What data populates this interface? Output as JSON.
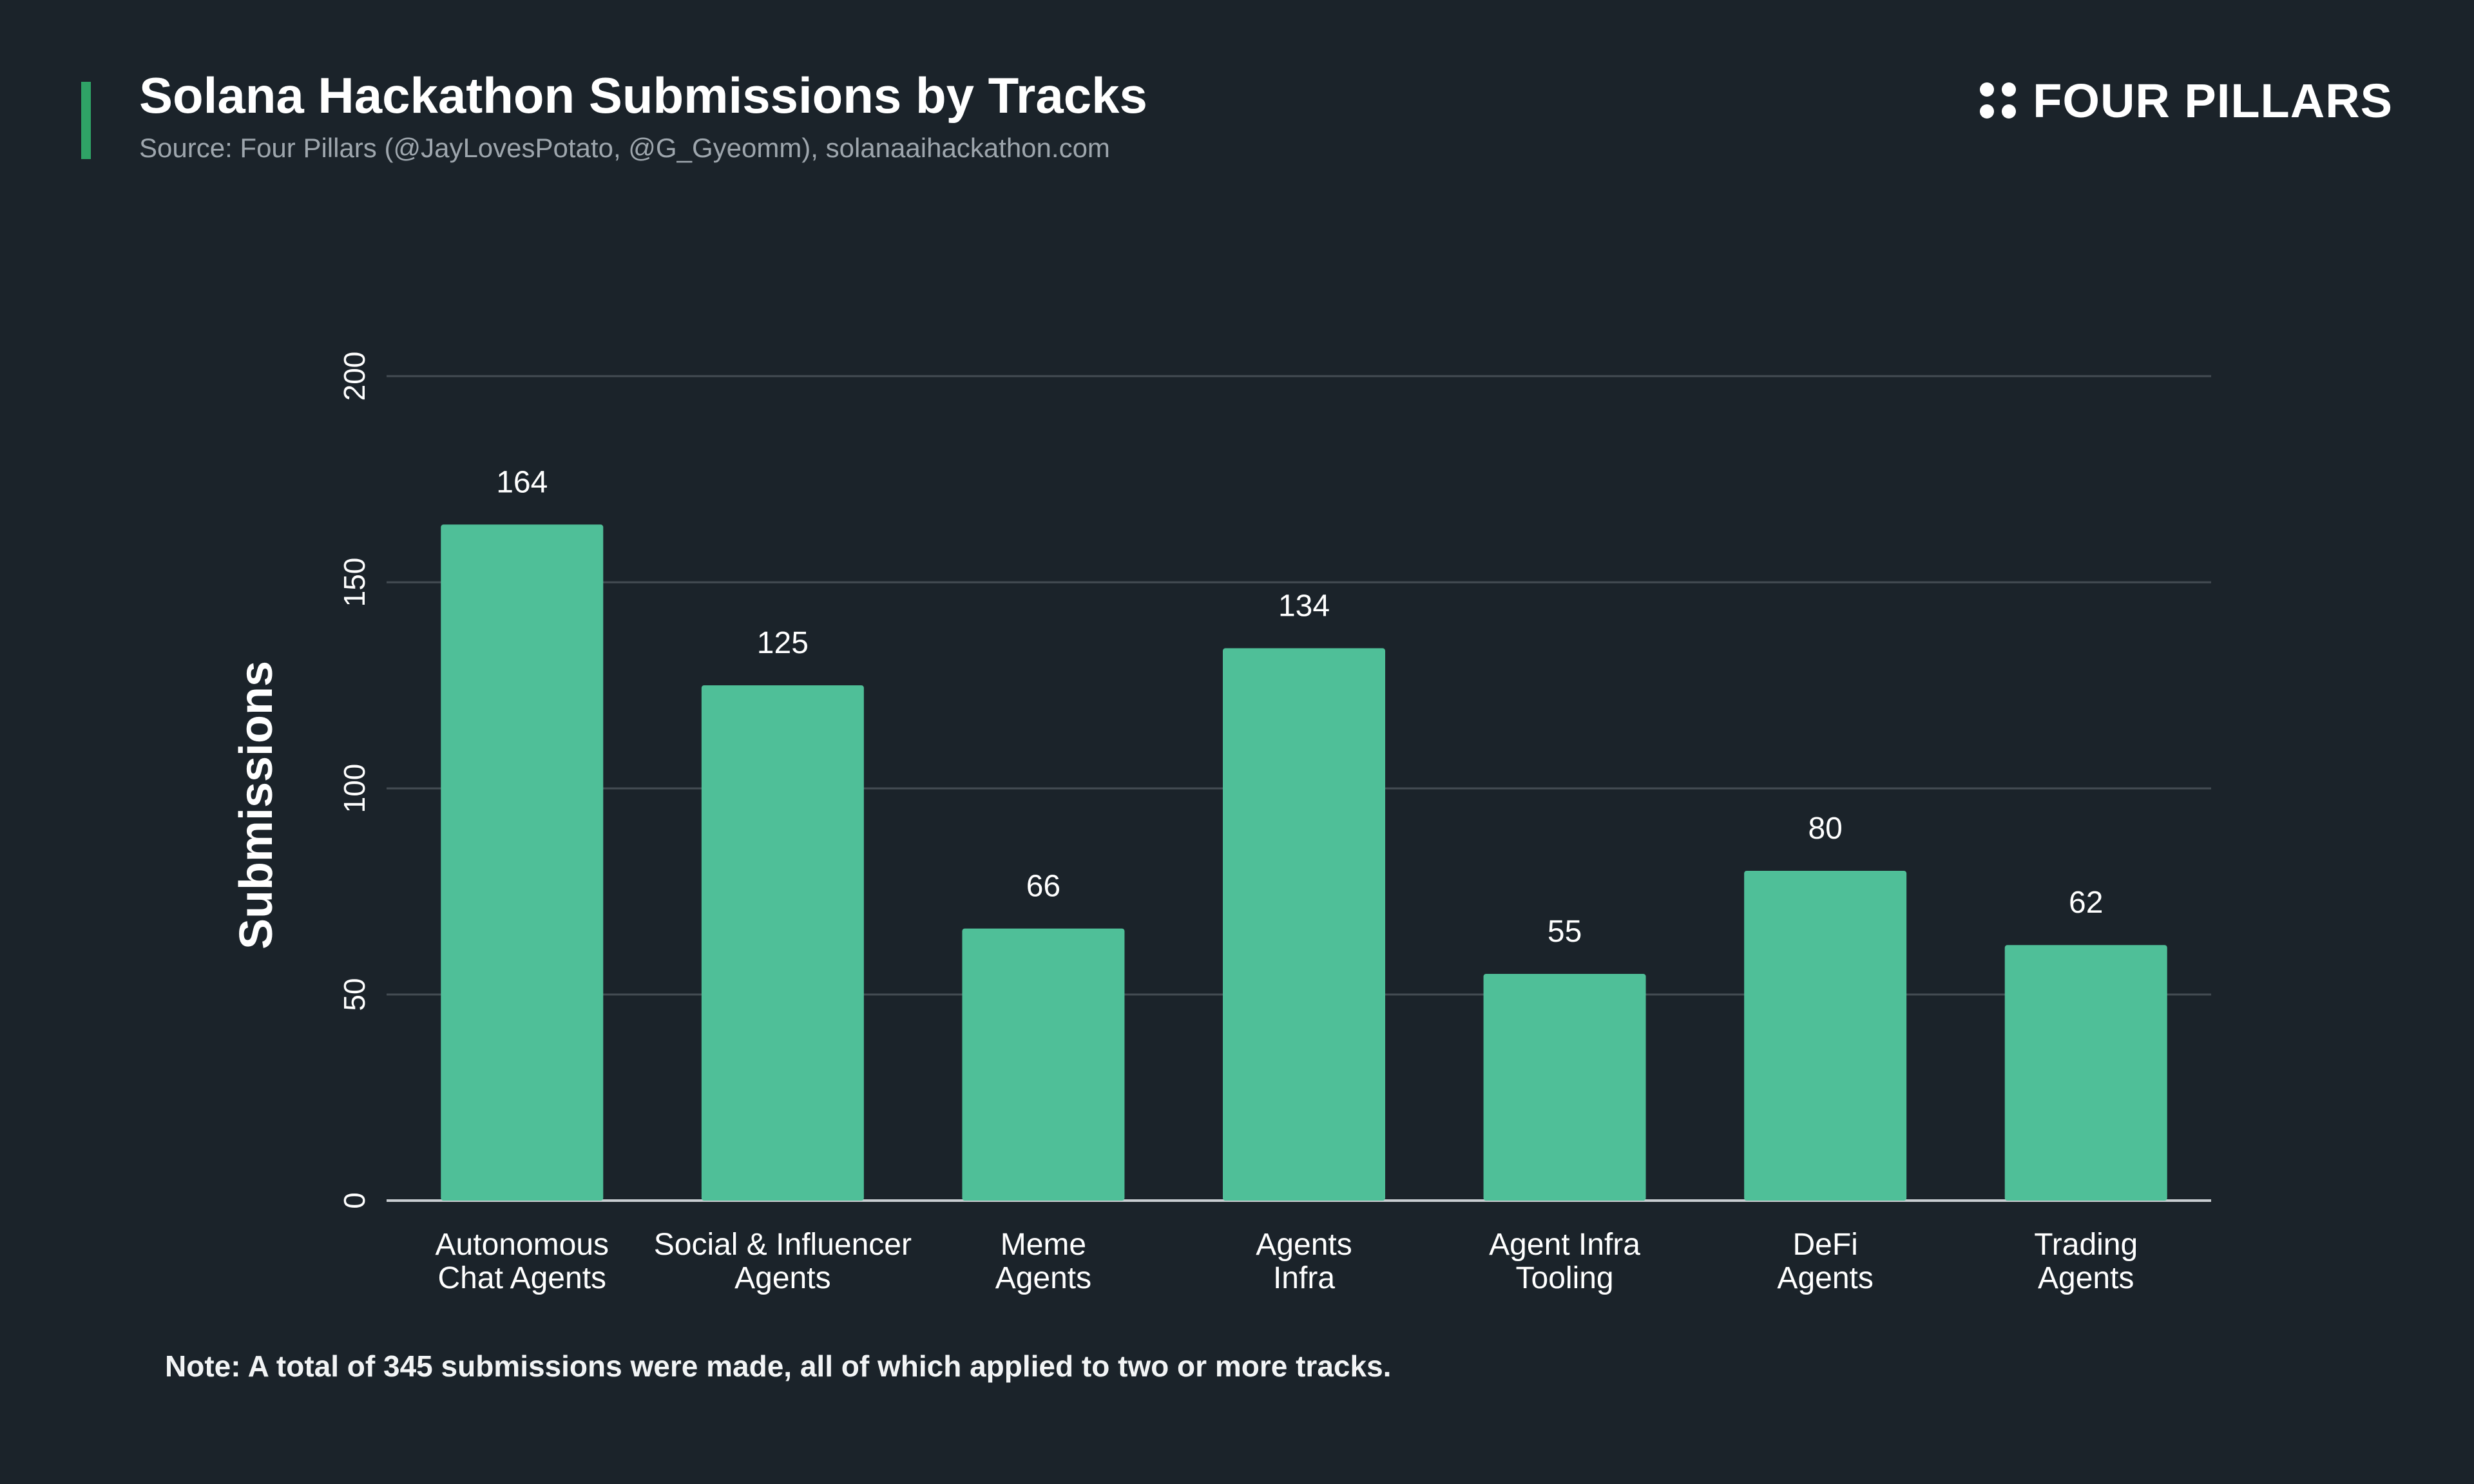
{
  "header": {
    "title": "Solana Hackathon Submissions by Tracks",
    "subtitle": "Source: Four Pillars (@JayLovesPotato, @G_Gyeomm), solanaaihackathon.com"
  },
  "logo": {
    "text": "FOUR PILLARS",
    "icon": "four-dots-logo-icon"
  },
  "colors": {
    "background": "#1b232a",
    "bar": "#4fbf98",
    "accent": "#2fa366",
    "grid": "#444c53",
    "text": "#ffffff",
    "muted": "#9ea6ad"
  },
  "chart_data": {
    "type": "bar",
    "categories": [
      [
        "Autonomous",
        "Chat Agents"
      ],
      [
        "Social & Influencer",
        "Agents"
      ],
      [
        "Meme",
        "Agents"
      ],
      [
        "Agents",
        "Infra"
      ],
      [
        "Agent Infra",
        "Tooling"
      ],
      [
        "DeFi",
        "Agents"
      ],
      [
        "Trading",
        "Agents"
      ]
    ],
    "values": [
      164,
      125,
      66,
      134,
      55,
      80,
      62
    ],
    "ylabel": "Submissions",
    "xlabel": "",
    "ylim": [
      0,
      200
    ],
    "yticks": [
      0,
      50,
      100,
      150,
      200
    ],
    "grid": true,
    "data_labels": true
  },
  "note": "Note: A total of 345 submissions were made, all of which applied to two or more tracks."
}
